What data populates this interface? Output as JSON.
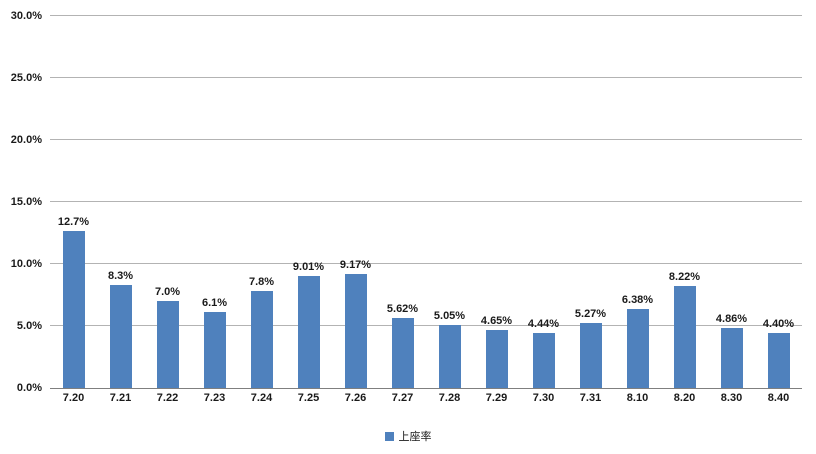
{
  "chart_data": {
    "type": "bar",
    "title": "",
    "categories": [
      "7.20",
      "7.21",
      "7.22",
      "7.23",
      "7.24",
      "7.25",
      "7.26",
      "7.27",
      "7.28",
      "7.29",
      "7.30",
      "7.31",
      "8.10",
      "8.20",
      "8.30",
      "8.40"
    ],
    "values": [
      12.7,
      8.3,
      7.0,
      6.1,
      7.8,
      9.01,
      9.17,
      5.62,
      5.05,
      4.65,
      4.44,
      5.27,
      6.38,
      8.22,
      4.86,
      4.4
    ],
    "data_labels": [
      "12.7%",
      "8.3%",
      "7.0%",
      "6.1%",
      "7.8%",
      "9.01%",
      "9.17%",
      "5.62%",
      "5.05%",
      "4.65%",
      "4.44%",
      "5.27%",
      "6.38%",
      "8.22%",
      "4.86%",
      "4.40%"
    ],
    "xlabel": "",
    "ylabel": "",
    "ylim": [
      0,
      30
    ],
    "ytick_labels": [
      "0.0%",
      "5.0%",
      "10.0%",
      "15.0%",
      "20.0%",
      "25.0%",
      "30.0%"
    ],
    "grid": true,
    "legend_position": "bottom",
    "bar_color": "#4f81bd",
    "legend": [
      {
        "name": "上座率",
        "color": "#4f81bd"
      }
    ]
  }
}
